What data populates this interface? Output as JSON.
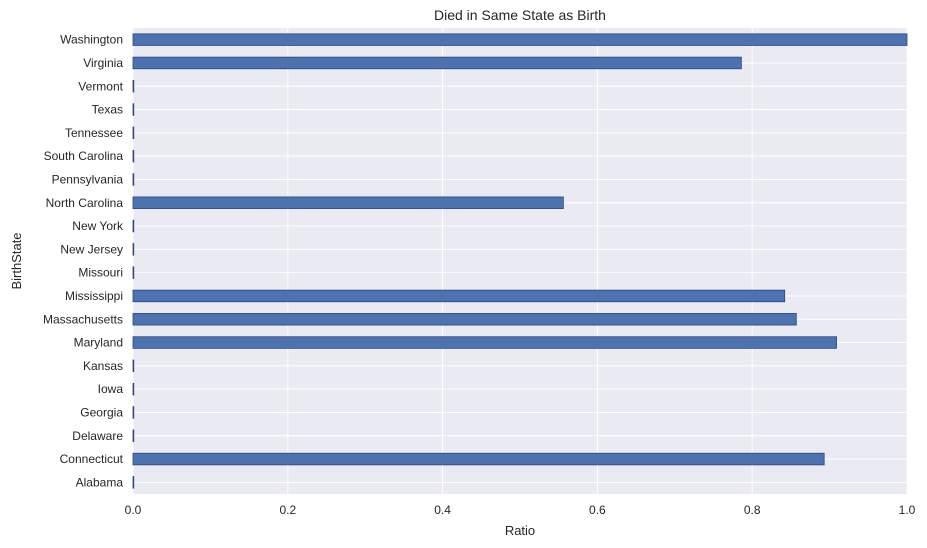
{
  "chart_data": {
    "type": "bar",
    "orientation": "horizontal",
    "title": "Died in Same State as Birth",
    "xlabel": "Ratio",
    "ylabel": "BirthState",
    "xlim": [
      0,
      1
    ],
    "xticks": [
      "0.0",
      "0.2",
      "0.4",
      "0.6",
      "0.8",
      "1.0"
    ],
    "categories": [
      "Alabama",
      "Connecticut",
      "Delaware",
      "Georgia",
      "Iowa",
      "Kansas",
      "Maryland",
      "Massachusetts",
      "Mississippi",
      "Missouri",
      "New Jersey",
      "New York",
      "North Carolina",
      "Pennsylvania",
      "South Carolina",
      "Tennessee",
      "Texas",
      "Vermont",
      "Virginia",
      "Washington"
    ],
    "values": [
      0,
      0.893,
      0,
      0,
      0,
      0,
      0.909,
      0.857,
      0.842,
      0,
      0,
      0,
      0.556,
      0,
      0,
      0,
      0,
      0,
      0.786,
      1.0
    ],
    "grid": true,
    "colors": {
      "bar": "#4c72b0",
      "bar_edge": "#2a4a80",
      "background": "#eaeaf2",
      "grid": "#ffffff"
    }
  }
}
